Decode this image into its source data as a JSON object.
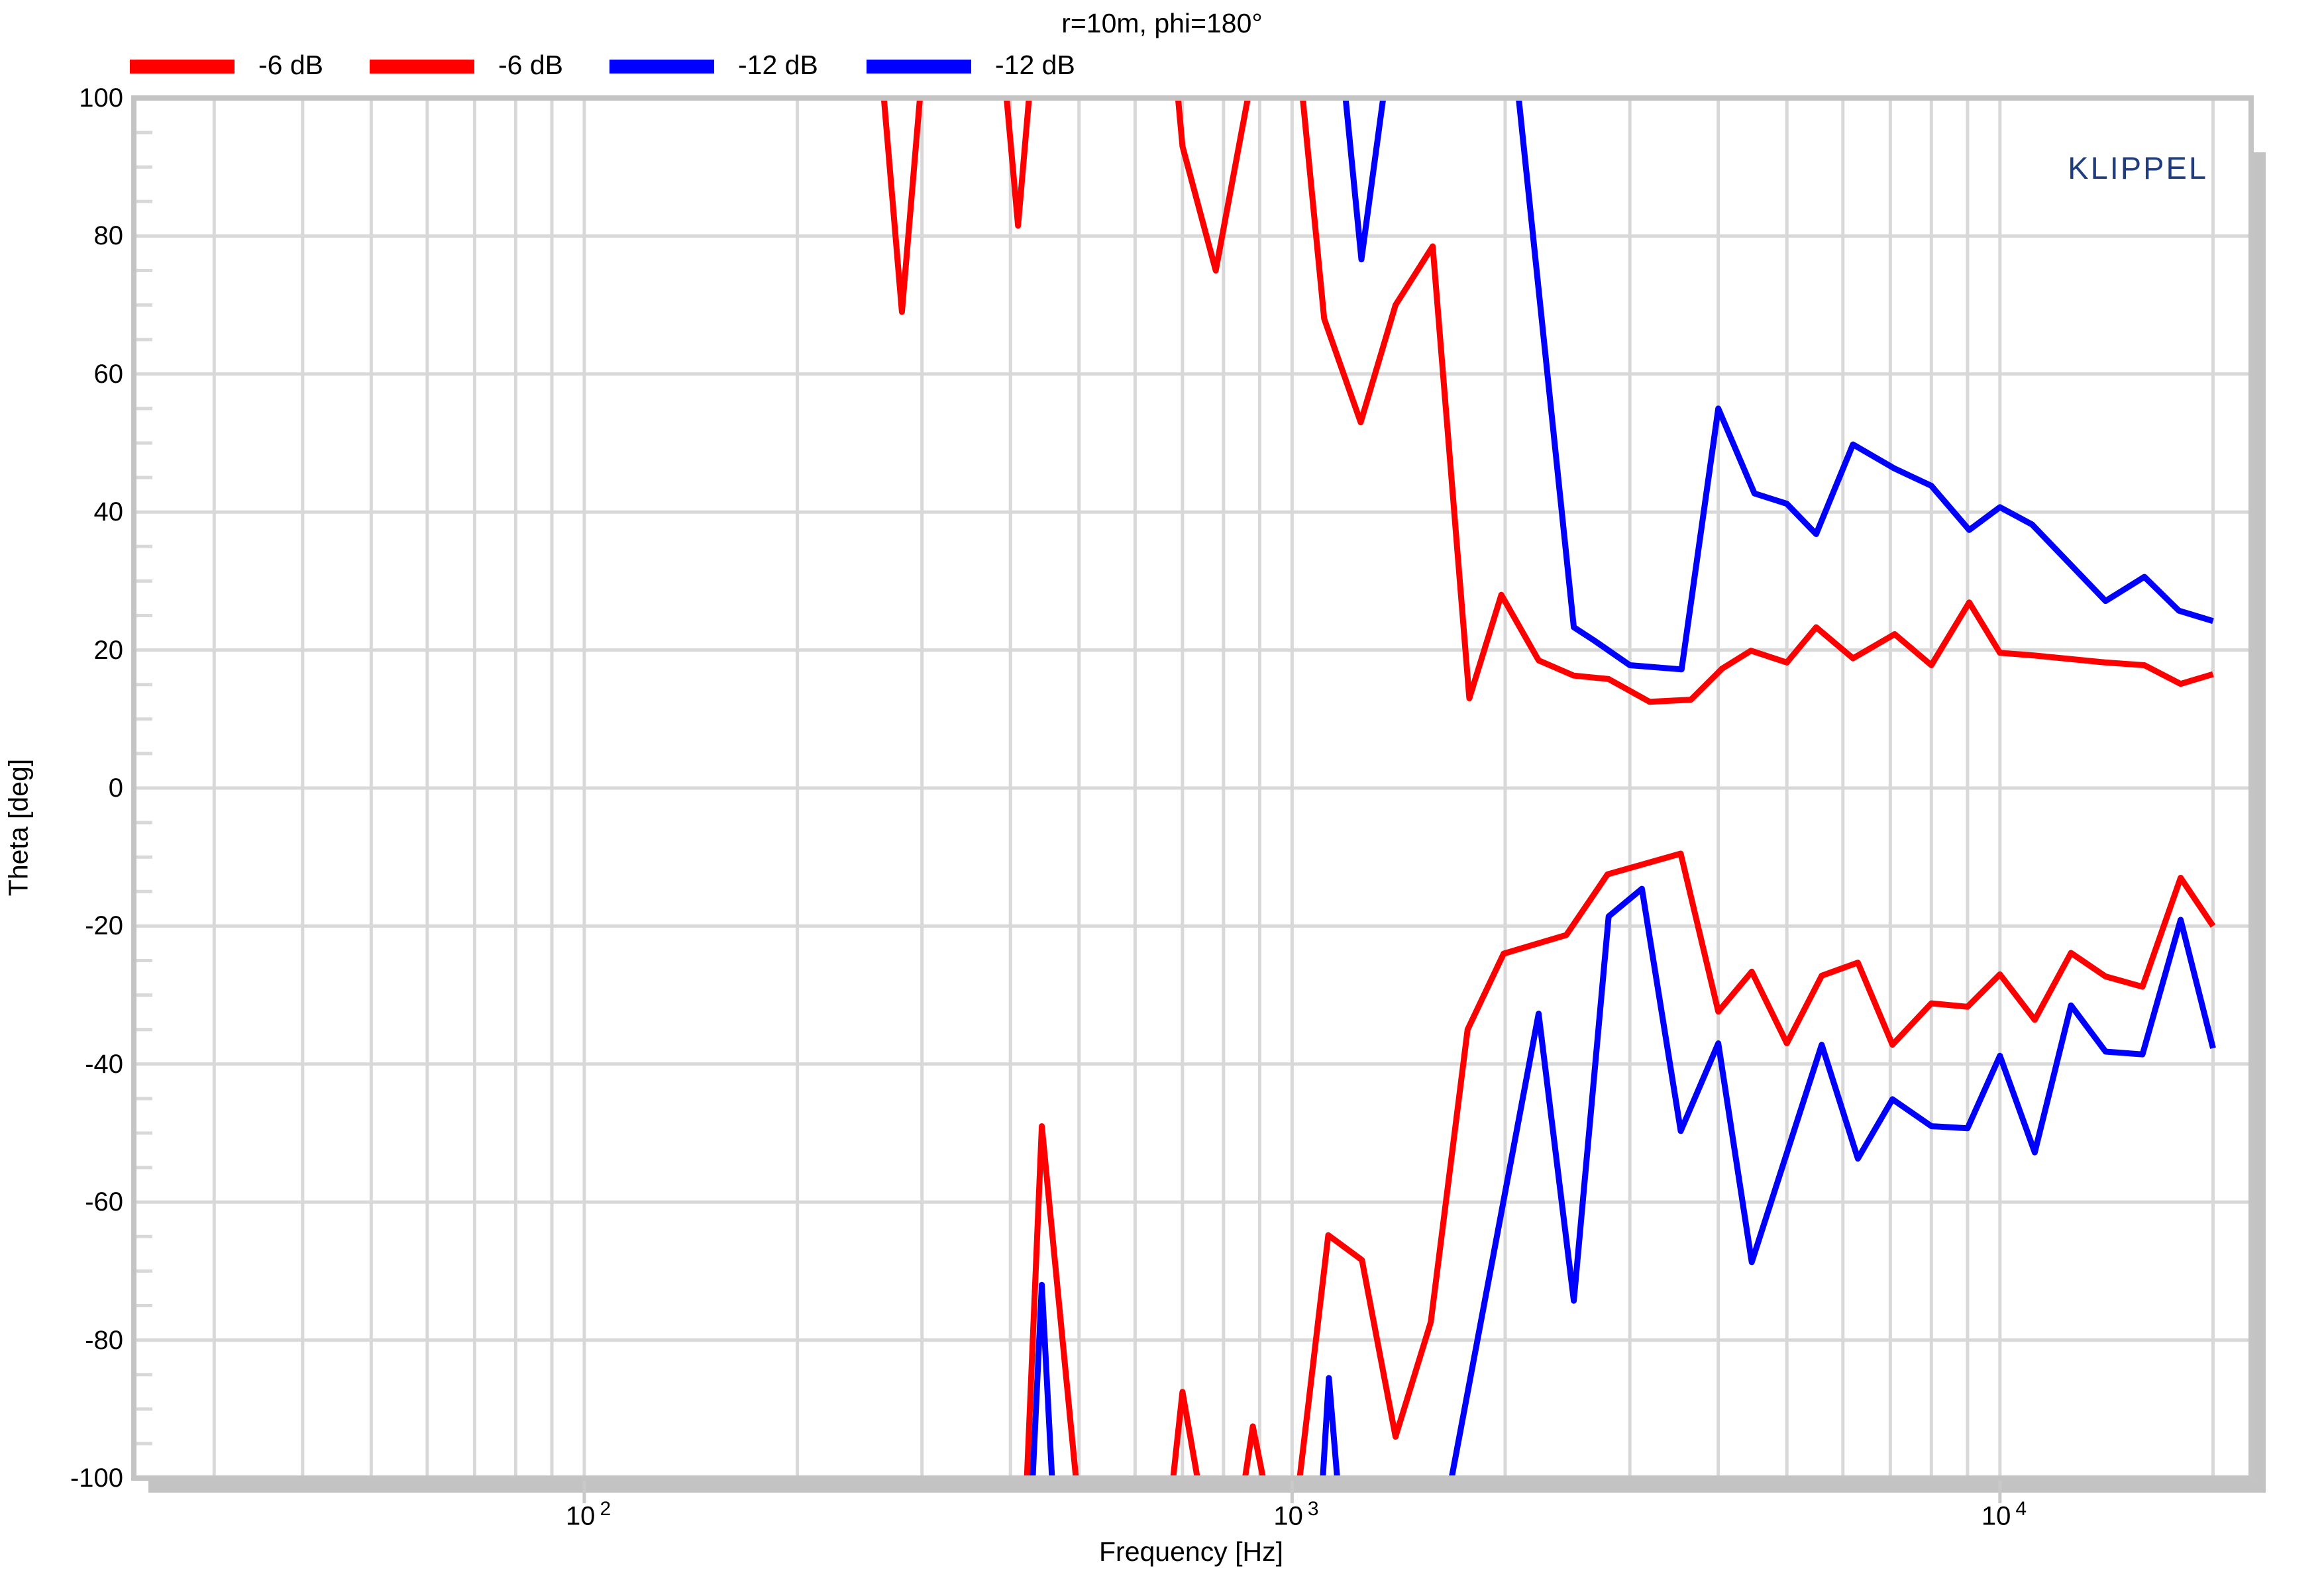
{
  "title": "r=10m, phi=180°",
  "watermark": "KLIPPEL",
  "legend": {
    "items": [
      {
        "label": "-6 dB",
        "color": "#ff0000"
      },
      {
        "label": "-6 dB",
        "color": "#ff0000"
      },
      {
        "label": "-12 dB",
        "color": "#0000ff"
      },
      {
        "label": "-12 dB",
        "color": "#0000ff"
      }
    ]
  },
  "colors": {
    "red": "#ff0000",
    "blue": "#0000ff",
    "grid": "#d8d8d8",
    "frame": "#c4c4c4",
    "shadow": "#c3c3c3",
    "watermark_blue": "#1f3d7c",
    "text": "#000000"
  },
  "chart_data": {
    "type": "line",
    "title": "r=10m, phi=180°",
    "xlabel": "Frequency [Hz]",
    "ylabel": "Theta [deg]",
    "x_scale": "log",
    "x_range": [
      23.1,
      22640
    ],
    "y_range": [
      -100,
      100
    ],
    "y_major_step": 20,
    "y_minor_step": 5,
    "grid": true,
    "legend_position": "top-left",
    "x_ticks": [
      {
        "base": "10",
        "exp": "2",
        "value": 100
      },
      {
        "base": "10",
        "exp": "3",
        "value": 1000
      },
      {
        "base": "10",
        "exp": "4",
        "value": 10000
      }
    ],
    "y_ticks": [
      "100",
      "80",
      "60",
      "40",
      "20",
      "0",
      "-20",
      "-40",
      "-60",
      "-80",
      "-100"
    ],
    "series": [
      {
        "name": "-6 dB",
        "role": "upper beamwidth angle",
        "color": "#ff0000",
        "segments": [
          [
            [
              265,
              100
            ],
            [
              281,
              69
            ],
            [
              298,
              100
            ]
          ],
          [
            [
              395,
              100
            ],
            [
              410,
              81.5
            ],
            [
              425,
              100
            ]
          ],
          [
            [
              690,
              100
            ],
            [
              700,
              93
            ],
            [
              780,
              75
            ],
            [
              866,
              100
            ]
          ],
          [
            [
              1035,
              100
            ],
            [
              1110,
              68
            ],
            [
              1250,
              53
            ],
            [
              1400,
              70
            ],
            [
              1580,
              78.5
            ],
            [
              1780,
              13
            ],
            [
              1975,
              28
            ],
            [
              2230,
              18.5
            ],
            [
              2500,
              16.3
            ],
            [
              2800,
              15.8
            ],
            [
              3200,
              12.5
            ],
            [
              3660,
              12.8
            ],
            [
              4050,
              17.3
            ],
            [
              4450,
              19.9
            ],
            [
              5000,
              18.2
            ],
            [
              5500,
              23.3
            ],
            [
              6200,
              18.8
            ],
            [
              7100,
              22.3
            ],
            [
              8000,
              17.8
            ],
            [
              9050,
              26.9
            ],
            [
              10000,
              19.6
            ],
            [
              11200,
              19.2
            ],
            [
              14100,
              18.2
            ],
            [
              16000,
              17.8
            ],
            [
              18000,
              15.1
            ],
            [
              20000,
              16.5
            ]
          ]
        ]
      },
      {
        "name": "-6 dB",
        "role": "lower beamwidth angle",
        "color": "#ff0000",
        "segments": [
          [
            [
              422,
              -100
            ],
            [
              443,
              -49
            ],
            [
              495,
              -100
            ]
          ],
          [
            [
              679,
              -100
            ],
            [
              700,
              -87.5
            ],
            [
              735,
              -100
            ]
          ],
          [
            [
              858,
              -100
            ],
            [
              880,
              -92.5
            ],
            [
              910,
              -100
            ]
          ],
          [
            [
              1025,
              -100
            ],
            [
              1125,
              -64.8
            ],
            [
              1255,
              -68.4
            ],
            [
              1400,
              -94
            ],
            [
              1570,
              -77.4
            ],
            [
              1770,
              -35
            ],
            [
              1990,
              -24
            ],
            [
              2440,
              -21.3
            ],
            [
              2790,
              -12.5
            ],
            [
              3540,
              -9.5
            ],
            [
              4000,
              -32.4
            ],
            [
              4460,
              -26.6
            ],
            [
              5000,
              -37
            ],
            [
              5600,
              -27.2
            ],
            [
              6300,
              -25.3
            ],
            [
              7050,
              -37.2
            ],
            [
              8000,
              -31.2
            ],
            [
              9000,
              -31.7
            ],
            [
              10000,
              -27
            ],
            [
              11200,
              -33.6
            ],
            [
              12600,
              -23.9
            ],
            [
              14100,
              -27.3
            ],
            [
              15900,
              -28.8
            ],
            [
              18000,
              -13
            ],
            [
              20000,
              -20
            ]
          ]
        ]
      },
      {
        "name": "-12 dB",
        "role": "upper beamwidth angle",
        "color": "#0000ff",
        "segments": [
          [
            [
              1190,
              100
            ],
            [
              1253,
              76.6
            ],
            [
              1345,
              100
            ]
          ],
          [
            [
              2090,
              100
            ],
            [
              2500,
              23.3
            ],
            [
              2670,
              21.4
            ],
            [
              3000,
              17.8
            ],
            [
              3550,
              17.2
            ],
            [
              4000,
              55
            ],
            [
              4500,
              42.7
            ],
            [
              5000,
              41.2
            ],
            [
              5500,
              36.8
            ],
            [
              6200,
              49.8
            ],
            [
              7100,
              46.3
            ],
            [
              8000,
              43.8
            ],
            [
              9050,
              37.4
            ],
            [
              10000,
              40.7
            ],
            [
              11100,
              38.2
            ],
            [
              14100,
              27.1
            ],
            [
              16000,
              30.6
            ],
            [
              17900,
              25.7
            ],
            [
              20000,
              24.2
            ]
          ]
        ]
      },
      {
        "name": "-12 dB",
        "role": "lower beamwidth angle",
        "color": "#0000ff",
        "segments": [
          [
            [
              430,
              -100
            ],
            [
              443,
              -72
            ],
            [
              458,
              -100
            ]
          ],
          [
            [
              1105,
              -100
            ],
            [
              1127,
              -85.5
            ],
            [
              1158,
              -100
            ]
          ],
          [
            [
              1680,
              -100
            ],
            [
              2230,
              -32.7
            ],
            [
              2500,
              -74.3
            ],
            [
              2800,
              -18.6
            ],
            [
              3120,
              -14.6
            ],
            [
              3540,
              -49.7
            ],
            [
              4000,
              -37
            ],
            [
              4460,
              -68.7
            ],
            [
              5600,
              -37.2
            ],
            [
              6300,
              -53.7
            ],
            [
              7050,
              -45.1
            ],
            [
              8000,
              -49
            ],
            [
              9000,
              -49.3
            ],
            [
              10000,
              -38.8
            ],
            [
              11200,
              -52.8
            ],
            [
              12600,
              -31.5
            ],
            [
              14100,
              -38.2
            ],
            [
              15900,
              -38.6
            ],
            [
              18000,
              -19.1
            ],
            [
              20000,
              -37.7
            ]
          ]
        ]
      }
    ]
  }
}
